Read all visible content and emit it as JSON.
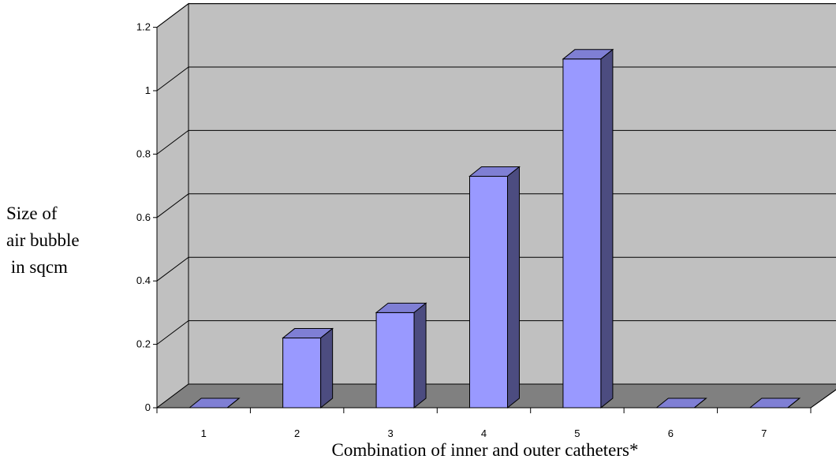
{
  "chart_data": {
    "type": "bar",
    "title": "",
    "categories": [
      "1",
      "2",
      "3",
      "4",
      "5",
      "6",
      "7"
    ],
    "values": [
      0,
      0.22,
      0.3,
      0.73,
      1.1,
      0,
      0
    ],
    "y_ticks": [
      "0",
      "0.2",
      "0.4",
      "0.6",
      "0.8",
      "1",
      "1.2"
    ],
    "ylim": [
      0,
      1.2
    ],
    "xlabel": "Combination of inner and outer catheters*",
    "ylabel_lines": [
      "Size of",
      "air bubble",
      " in sqcm"
    ],
    "grid": true,
    "legend": "none",
    "three_d": true,
    "colors": {
      "bar_front": "#9999ff",
      "bar_top": "#7f7fd4",
      "bar_side": "#4c4c80",
      "back_wall": "#c0c0c0",
      "side_wall": "#c0c0c0",
      "floor": "#808080"
    }
  }
}
